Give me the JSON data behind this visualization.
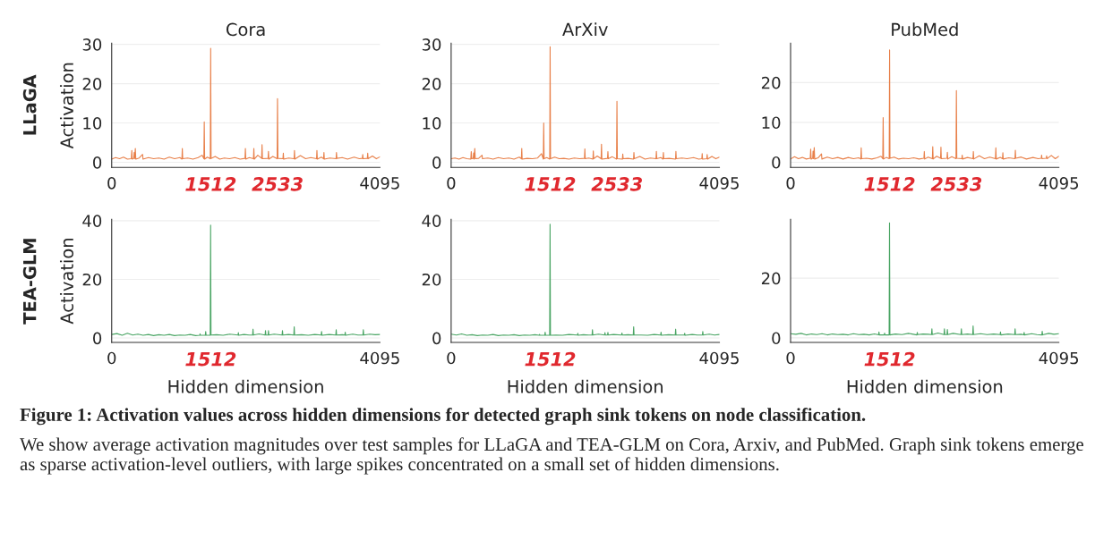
{
  "chart_data": [
    {
      "type": "line",
      "title": "Cora",
      "ylabel": "Activation",
      "xlim": [
        0,
        4095
      ],
      "ylim": [
        -1.3,
        30.3
      ],
      "xticks": [
        0,
        1512,
        2533,
        4095
      ],
      "yticks": [
        0,
        10,
        20,
        30
      ],
      "grid": "y",
      "annotations": [
        "LLaGA"
      ],
      "series": [
        {
          "color": "#e8804a",
          "x": [
            0,
            60,
            120,
            180,
            240,
            300,
            307,
            314,
            337,
            343,
            350,
            361,
            368,
            420,
            472,
            478,
            560,
            640,
            720,
            800,
            880,
            960,
            1040,
            1072,
            1078,
            1084,
            1160,
            1240,
            1320,
            1380,
            1407,
            1413,
            1419,
            1460,
            1505,
            1511,
            1517,
            1580,
            1650,
            1720,
            1800,
            1880,
            1960,
            2035,
            2041,
            2047,
            2100,
            2164,
            2170,
            2176,
            2230,
            2289,
            2295,
            2301,
            2387,
            2393,
            2399,
            2460,
            2525,
            2531,
            2537,
            2614,
            2620,
            2626,
            2700,
            2784,
            2790,
            2796,
            2880,
            2960,
            3040,
            3127,
            3133,
            3139,
            3200,
            3234,
            3240,
            3246,
            3330,
            3425,
            3431,
            3437,
            3520,
            3600,
            3700,
            3780,
            3826,
            3832,
            3838,
            3902,
            3908,
            3914,
            3980,
            4040,
            4095
          ],
          "values": [
            0.8,
            1.2,
            0.9,
            1.3,
            0.8,
            0.9,
            3.0,
            0.8,
            1.0,
            2.5,
            0.9,
            3.5,
            0.8,
            1.1,
            2.0,
            0.8,
            1.2,
            0.9,
            1.1,
            0.8,
            1.3,
            0.9,
            1.2,
            0.8,
            3.5,
            0.9,
            1.1,
            0.8,
            1.2,
            1.8,
            0.9,
            10.3,
            0.8,
            1.3,
            0.9,
            29.0,
            1.0,
            1.5,
            0.8,
            1.1,
            0.9,
            1.2,
            0.8,
            1.0,
            3.5,
            0.8,
            1.2,
            0.9,
            3.5,
            0.8,
            1.8,
            1.0,
            4.5,
            0.9,
            1.0,
            2.8,
            0.8,
            1.5,
            0.9,
            16.2,
            1.0,
            0.9,
            2.3,
            0.8,
            1.1,
            0.9,
            3.0,
            0.8,
            1.7,
            0.9,
            1.2,
            0.9,
            3.0,
            0.8,
            1.3,
            0.9,
            2.5,
            0.8,
            1.1,
            0.9,
            2.5,
            1.0,
            1.2,
            0.8,
            1.3,
            0.9,
            1.0,
            2.0,
            0.9,
            1.0,
            2.3,
            0.9,
            1.6,
            0.9,
            1.4
          ]
        }
      ]
    },
    {
      "type": "line",
      "title": "ArXiv",
      "xlim": [
        0,
        4095
      ],
      "ylim": [
        -1.3,
        30.3
      ],
      "xticks": [
        0,
        1512,
        2533,
        4095
      ],
      "yticks": [
        0,
        10,
        20,
        30
      ],
      "grid": "y",
      "series": [
        {
          "color": "#e8804a",
          "x": [
            0,
            60,
            120,
            180,
            240,
            300,
            307,
            314,
            337,
            343,
            350,
            361,
            368,
            420,
            472,
            478,
            560,
            640,
            720,
            800,
            880,
            960,
            1040,
            1072,
            1078,
            1084,
            1160,
            1240,
            1320,
            1380,
            1407,
            1413,
            1419,
            1460,
            1505,
            1511,
            1517,
            1580,
            1650,
            1720,
            1800,
            1880,
            1960,
            2035,
            2041,
            2047,
            2100,
            2164,
            2170,
            2176,
            2230,
            2289,
            2295,
            2301,
            2387,
            2393,
            2399,
            2460,
            2525,
            2531,
            2537,
            2614,
            2620,
            2626,
            2700,
            2784,
            2790,
            2796,
            2880,
            2960,
            3040,
            3127,
            3133,
            3139,
            3200,
            3234,
            3240,
            3246,
            3330,
            3425,
            3431,
            3437,
            3520,
            3600,
            3700,
            3780,
            3826,
            3832,
            3838,
            3902,
            3908,
            3914,
            3980,
            4040,
            4095
          ],
          "values": [
            0.9,
            1.1,
            0.8,
            1.2,
            0.9,
            0.8,
            2.7,
            0.9,
            1.0,
            2.4,
            0.8,
            3.5,
            0.9,
            1.0,
            1.8,
            0.9,
            1.1,
            0.8,
            1.2,
            0.9,
            1.1,
            0.8,
            1.3,
            0.9,
            3.5,
            0.8,
            1.0,
            0.9,
            1.1,
            2.2,
            0.8,
            10.0,
            0.9,
            1.2,
            0.8,
            29.4,
            0.9,
            1.3,
            0.9,
            1.0,
            0.8,
            1.1,
            0.9,
            1.0,
            3.4,
            0.9,
            1.1,
            0.8,
            2.9,
            0.9,
            1.6,
            0.9,
            4.6,
            0.8,
            1.0,
            2.7,
            0.9,
            1.4,
            0.8,
            15.5,
            0.9,
            0.8,
            2.1,
            0.9,
            1.0,
            0.8,
            2.5,
            0.9,
            1.5,
            0.8,
            1.1,
            0.9,
            2.8,
            0.9,
            1.2,
            0.8,
            2.5,
            0.9,
            1.0,
            0.8,
            2.8,
            0.9,
            1.1,
            0.9,
            1.2,
            0.8,
            0.9,
            2.2,
            0.8,
            0.9,
            2.0,
            0.8,
            1.5,
            0.9,
            1.3
          ]
        }
      ]
    },
    {
      "type": "line",
      "title": "PubMed",
      "xlim": [
        0,
        4095
      ],
      "ylim": [
        -1.3,
        29.9
      ],
      "xticks": [
        0,
        1512,
        2533,
        4095
      ],
      "yticks": [
        0,
        10,
        20
      ],
      "grid": "y",
      "series": [
        {
          "color": "#e8804a",
          "x": [
            0,
            60,
            120,
            180,
            240,
            300,
            307,
            314,
            337,
            343,
            350,
            361,
            368,
            420,
            472,
            478,
            560,
            640,
            720,
            800,
            880,
            960,
            1040,
            1072,
            1078,
            1084,
            1160,
            1240,
            1320,
            1380,
            1407,
            1413,
            1419,
            1460,
            1505,
            1511,
            1517,
            1580,
            1650,
            1720,
            1800,
            1880,
            1960,
            2035,
            2041,
            2047,
            2100,
            2164,
            2170,
            2176,
            2230,
            2289,
            2295,
            2301,
            2387,
            2393,
            2399,
            2460,
            2525,
            2531,
            2537,
            2614,
            2620,
            2626,
            2700,
            2784,
            2790,
            2796,
            2880,
            2960,
            3040,
            3127,
            3133,
            3139,
            3200,
            3234,
            3240,
            3246,
            3330,
            3425,
            3431,
            3437,
            3520,
            3600,
            3700,
            3780,
            3826,
            3832,
            3838,
            3902,
            3908,
            3914,
            3980,
            4040,
            4095
          ],
          "values": [
            0.8,
            1.4,
            0.9,
            1.2,
            0.8,
            1.0,
            3.3,
            0.8,
            1.0,
            2.8,
            0.9,
            3.7,
            0.8,
            1.1,
            2.1,
            0.8,
            1.3,
            0.9,
            1.2,
            0.8,
            1.2,
            0.9,
            1.1,
            0.8,
            3.6,
            0.9,
            1.0,
            0.8,
            1.1,
            1.5,
            0.9,
            11.2,
            0.8,
            1.2,
            0.9,
            28.2,
            1.0,
            1.3,
            0.8,
            1.0,
            0.9,
            1.1,
            0.8,
            1.0,
            2.7,
            0.8,
            1.3,
            0.9,
            3.9,
            0.8,
            1.5,
            1.0,
            3.8,
            0.9,
            1.0,
            2.5,
            0.8,
            1.4,
            0.9,
            18.0,
            1.0,
            0.9,
            1.8,
            0.8,
            1.2,
            0.9,
            2.7,
            0.8,
            1.6,
            0.9,
            1.3,
            0.9,
            3.6,
            0.8,
            1.2,
            0.9,
            2.4,
            0.8,
            1.1,
            0.9,
            3.0,
            1.0,
            1.3,
            0.8,
            1.2,
            0.9,
            1.0,
            1.8,
            0.9,
            1.0,
            1.6,
            0.9,
            1.7,
            0.9,
            1.5
          ]
        }
      ]
    },
    {
      "type": "line",
      "xlabel": "Hidden dimension",
      "ylabel": "Activation",
      "xlim": [
        0,
        4095
      ],
      "ylim": [
        -1.5,
        40.5
      ],
      "xticks": [
        0,
        1512,
        4095
      ],
      "yticks": [
        0,
        20,
        40
      ],
      "grid": "y",
      "annotations": [
        "TEA-GLM"
      ],
      "series": [
        {
          "color": "#4aa564",
          "x": [
            0,
            80,
            160,
            240,
            320,
            400,
            480,
            560,
            640,
            720,
            800,
            880,
            960,
            1040,
            1120,
            1200,
            1280,
            1343,
            1349,
            1355,
            1429,
            1435,
            1441,
            1504,
            1510,
            1516,
            1600,
            1700,
            1800,
            1928,
            1934,
            1940,
            2020,
            2100,
            2151,
            2157,
            2163,
            2250,
            2342,
            2348,
            2354,
            2387,
            2393,
            2399,
            2480,
            2601,
            2607,
            2613,
            2700,
            2780,
            2786,
            2792,
            2900,
            3000,
            3100,
            3198,
            3204,
            3210,
            3320,
            3421,
            3427,
            3433,
            3520,
            3559,
            3565,
            3571,
            3680,
            3760,
            3835,
            3841,
            3847,
            3940,
            4020,
            4095
          ],
          "values": [
            1.2,
            1.5,
            0.9,
            1.6,
            1.0,
            1.3,
            0.9,
            1.2,
            0.8,
            1.1,
            0.9,
            1.2,
            0.8,
            1.0,
            0.9,
            1.2,
            0.8,
            0.9,
            1.4,
            0.9,
            0.9,
            2.2,
            0.9,
            0.9,
            38.5,
            1.0,
            1.1,
            0.9,
            1.3,
            1.0,
            1.8,
            0.9,
            1.2,
            1.0,
            1.0,
            3.0,
            1.0,
            1.4,
            1.0,
            2.5,
            1.0,
            1.0,
            2.5,
            1.0,
            1.3,
            1.0,
            2.5,
            1.0,
            1.2,
            1.0,
            3.8,
            1.0,
            1.1,
            0.9,
            1.2,
            1.0,
            2.2,
            0.9,
            1.2,
            1.0,
            2.8,
            1.0,
            1.1,
            1.0,
            2.0,
            0.9,
            1.3,
            1.0,
            1.0,
            2.8,
            1.0,
            1.3,
            1.1,
            1.2
          ]
        }
      ]
    },
    {
      "type": "line",
      "xlabel": "Hidden dimension",
      "xlim": [
        0,
        4095
      ],
      "ylim": [
        -1.5,
        40.5
      ],
      "xticks": [
        0,
        1512,
        4095
      ],
      "yticks": [
        0,
        20,
        40
      ],
      "grid": "y",
      "series": [
        {
          "color": "#4aa564",
          "x": [
            0,
            80,
            160,
            240,
            320,
            400,
            480,
            560,
            640,
            720,
            800,
            880,
            960,
            1040,
            1120,
            1200,
            1280,
            1343,
            1349,
            1355,
            1429,
            1435,
            1441,
            1504,
            1510,
            1516,
            1600,
            1700,
            1800,
            1928,
            1934,
            1940,
            2020,
            2100,
            2151,
            2157,
            2163,
            2250,
            2342,
            2348,
            2354,
            2387,
            2393,
            2399,
            2480,
            2601,
            2607,
            2613,
            2700,
            2780,
            2786,
            2792,
            2900,
            3000,
            3100,
            3198,
            3204,
            3210,
            3320,
            3421,
            3427,
            3433,
            3520,
            3559,
            3565,
            3571,
            3680,
            3760,
            3835,
            3841,
            3847,
            3940,
            4020,
            4095
          ],
          "values": [
            1.3,
            1.0,
            1.4,
            0.9,
            1.1,
            0.8,
            1.0,
            0.9,
            1.2,
            0.8,
            1.0,
            0.9,
            1.1,
            0.8,
            1.0,
            0.9,
            1.1,
            0.9,
            1.2,
            0.9,
            0.9,
            2.0,
            0.9,
            0.9,
            38.8,
            0.9,
            1.0,
            0.9,
            1.2,
            1.0,
            1.6,
            0.9,
            1.1,
            1.0,
            1.0,
            2.8,
            1.0,
            1.3,
            1.0,
            1.8,
            1.0,
            1.0,
            1.9,
            1.0,
            1.2,
            1.0,
            1.7,
            1.0,
            1.1,
            1.0,
            3.8,
            1.0,
            1.0,
            0.9,
            1.2,
            1.0,
            2.0,
            0.9,
            1.1,
            1.0,
            3.0,
            1.0,
            1.0,
            1.0,
            1.6,
            0.9,
            1.2,
            1.0,
            1.0,
            2.2,
            1.0,
            1.3,
            1.0,
            1.2
          ]
        }
      ]
    },
    {
      "type": "line",
      "xlabel": "Hidden dimension",
      "xlim": [
        0,
        4095
      ],
      "ylim": [
        -1.5,
        39.7
      ],
      "xticks": [
        0,
        1512,
        4095
      ],
      "yticks": [
        0,
        20
      ],
      "grid": "y",
      "annotations": [
        "Figure 1: Activation values across hidden dimensions for detected graph sink tokens on node classification.",
        "We show average activation magnitudes over test samples for LLaGA and TEA-GLM on Cora, Arxiv, and PubMed. Graph sink tokens emerge as sparse activation-level outliers, with large spikes concentrated on a small set of hidden dimensions."
      ],
      "series": [
        {
          "color": "#4aa564",
          "x": [
            0,
            80,
            160,
            240,
            320,
            400,
            480,
            560,
            640,
            720,
            800,
            880,
            960,
            1040,
            1120,
            1200,
            1280,
            1343,
            1349,
            1355,
            1429,
            1435,
            1441,
            1504,
            1510,
            1516,
            1600,
            1700,
            1800,
            1928,
            1934,
            1940,
            2020,
            2100,
            2151,
            2157,
            2163,
            2250,
            2342,
            2348,
            2354,
            2387,
            2393,
            2399,
            2480,
            2601,
            2607,
            2613,
            2700,
            2780,
            2786,
            2792,
            2900,
            3000,
            3100,
            3198,
            3204,
            3210,
            3320,
            3421,
            3427,
            3433,
            3520,
            3559,
            3565,
            3571,
            3680,
            3760,
            3835,
            3841,
            3847,
            3940,
            4020,
            4095
          ],
          "values": [
            1.4,
            1.2,
            1.5,
            1.0,
            1.3,
            1.1,
            1.4,
            1.0,
            1.3,
            1.1,
            1.2,
            1.0,
            1.4,
            1.1,
            1.2,
            1.0,
            1.3,
            1.0,
            2.0,
            1.0,
            1.0,
            1.6,
            1.0,
            1.0,
            38.5,
            1.0,
            1.3,
            1.1,
            1.5,
            1.0,
            1.8,
            1.1,
            1.3,
            1.2,
            1.1,
            3.0,
            1.1,
            1.6,
            1.1,
            3.0,
            1.1,
            1.1,
            2.8,
            1.1,
            1.5,
            1.1,
            3.0,
            1.1,
            1.3,
            1.1,
            4.0,
            1.1,
            1.4,
            1.1,
            1.3,
            1.1,
            2.0,
            1.0,
            1.3,
            1.1,
            3.0,
            1.1,
            1.2,
            1.0,
            1.8,
            1.0,
            1.4,
            1.1,
            1.0,
            2.2,
            1.0,
            1.5,
            1.2,
            1.4
          ]
        }
      ]
    }
  ]
}
